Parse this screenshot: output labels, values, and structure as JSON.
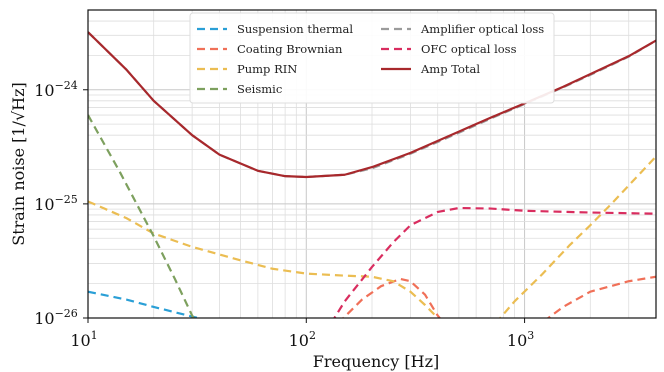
{
  "chart_data": {
    "type": "line",
    "x_scale": "log",
    "y_scale": "log",
    "xlim": [
      10,
      4000
    ],
    "ylim": [
      1e-26,
      5e-24
    ],
    "grid": true,
    "legend_placement": "top-center",
    "xlabel": "Frequency [Hz]",
    "ylabel": "Strain noise [1/√Hz]",
    "xticks": [
      {
        "value": 10,
        "base": "10",
        "exp": "1"
      },
      {
        "value": 100,
        "base": "10",
        "exp": "2"
      },
      {
        "value": 1000,
        "base": "10",
        "exp": "3"
      }
    ],
    "yticks": [
      {
        "value": 1e-26,
        "base": "10",
        "exp": "−26"
      },
      {
        "value": 1e-25,
        "base": "10",
        "exp": "−25"
      },
      {
        "value": 1e-24,
        "base": "10",
        "exp": "−24"
      }
    ],
    "series": [
      {
        "name": "Suspension thermal",
        "color": "#2a9fd6",
        "dash": "dashed",
        "points": [
          [
            10,
            1.7e-26
          ],
          [
            15,
            1.45e-26
          ],
          [
            20,
            1.25e-26
          ],
          [
            30,
            1.03e-26
          ],
          [
            40,
            9e-27
          ]
        ]
      },
      {
        "name": "Coating Brownian",
        "color": "#f07058",
        "dash": "dashed",
        "points": [
          [
            140,
            9e-27
          ],
          [
            180,
            1.45e-26
          ],
          [
            220,
            1.9e-26
          ],
          [
            270,
            2.2e-26
          ],
          [
            300,
            2.1e-26
          ],
          [
            350,
            1.6e-26
          ],
          [
            400,
            1.05e-26
          ],
          [
            450,
            8e-27
          ],
          [
            1100,
            8e-27
          ],
          [
            1500,
            1.25e-26
          ],
          [
            2000,
            1.7e-26
          ],
          [
            3000,
            2.1e-26
          ],
          [
            4000,
            2.3e-26
          ]
        ]
      },
      {
        "name": "Pump RIN",
        "color": "#ebbd52",
        "dash": "dashed",
        "points": [
          [
            10,
            1.05e-25
          ],
          [
            15,
            7.5e-26
          ],
          [
            20,
            5.5e-26
          ],
          [
            30,
            4.2e-26
          ],
          [
            50,
            3.2e-26
          ],
          [
            70,
            2.7e-26
          ],
          [
            100,
            2.45e-26
          ],
          [
            150,
            2.35e-26
          ],
          [
            200,
            2.3e-26
          ],
          [
            250,
            2.1e-26
          ],
          [
            300,
            1.7e-26
          ],
          [
            350,
            1.3e-26
          ],
          [
            400,
            1e-26
          ],
          [
            450,
            8e-27
          ],
          [
            700,
            8e-27
          ],
          [
            900,
            1.4e-26
          ],
          [
            1200,
            2.4e-26
          ],
          [
            1600,
            4.3e-26
          ],
          [
            2000,
            6.5e-26
          ],
          [
            2500,
            1e-25
          ],
          [
            3000,
            1.45e-25
          ],
          [
            4000,
            2.6e-25
          ]
        ]
      },
      {
        "name": "Seismic",
        "color": "#7da05e",
        "dash": "dashed",
        "points": [
          [
            10,
            6e-25
          ],
          [
            14,
            1.9e-25
          ],
          [
            20,
            5.2e-26
          ],
          [
            25,
            2.2e-26
          ],
          [
            30,
            1.05e-26
          ],
          [
            33,
            8e-27
          ]
        ]
      },
      {
        "name": "Amplifier optical loss",
        "color": "#9b9b9b",
        "dash": "dashed",
        "points": [
          [
            10,
            3.2e-24
          ],
          [
            15,
            1.5e-24
          ],
          [
            20,
            8e-25
          ],
          [
            30,
            4e-25
          ],
          [
            40,
            2.7e-25
          ],
          [
            60,
            1.95e-25
          ],
          [
            80,
            1.75e-25
          ],
          [
            100,
            1.72e-25
          ],
          [
            150,
            1.8e-25
          ],
          [
            200,
            2.05e-25
          ],
          [
            300,
            2.75e-25
          ],
          [
            500,
            4.2e-25
          ],
          [
            700,
            5.6e-25
          ],
          [
            1000,
            7.5e-25
          ],
          [
            1500,
            1.05e-24
          ],
          [
            2000,
            1.35e-24
          ],
          [
            3000,
            1.95e-24
          ],
          [
            4000,
            2.7e-24
          ]
        ]
      },
      {
        "name": "OFC optical loss",
        "color": "#d92d5f",
        "dash": "dashed",
        "points": [
          [
            130,
            9e-27
          ],
          [
            150,
            1.4e-26
          ],
          [
            200,
            2.8e-26
          ],
          [
            250,
            4.6e-26
          ],
          [
            300,
            6.5e-26
          ],
          [
            400,
            8.5e-26
          ],
          [
            500,
            9.2e-26
          ],
          [
            700,
            9.1e-26
          ],
          [
            1000,
            8.7e-26
          ],
          [
            2000,
            8.4e-26
          ],
          [
            4000,
            8.2e-26
          ]
        ]
      },
      {
        "name": "Amp Total",
        "color": "#a8282c",
        "dash": "solid",
        "points": [
          [
            10,
            3.2e-24
          ],
          [
            15,
            1.5e-24
          ],
          [
            20,
            8e-25
          ],
          [
            30,
            4e-25
          ],
          [
            40,
            2.7e-25
          ],
          [
            60,
            1.95e-25
          ],
          [
            80,
            1.75e-25
          ],
          [
            100,
            1.72e-25
          ],
          [
            150,
            1.8e-25
          ],
          [
            200,
            2.1e-25
          ],
          [
            300,
            2.8e-25
          ],
          [
            500,
            4.3e-25
          ],
          [
            700,
            5.7e-25
          ],
          [
            1000,
            7.6e-25
          ],
          [
            1500,
            1.06e-24
          ],
          [
            2000,
            1.37e-24
          ],
          [
            3000,
            1.97e-24
          ],
          [
            4000,
            2.7e-24
          ]
        ]
      }
    ]
  }
}
